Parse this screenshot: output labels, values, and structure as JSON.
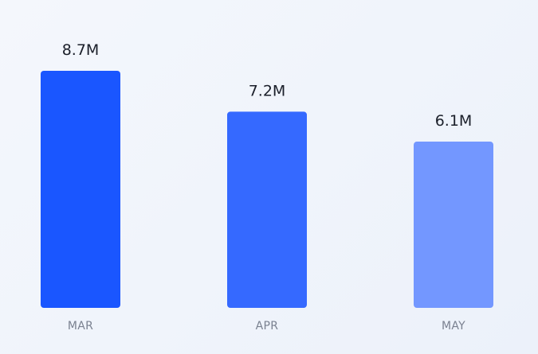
{
  "chart_data": {
    "type": "bar",
    "title": "",
    "xlabel": "",
    "ylabel": "",
    "categories": [
      "MAR",
      "APR",
      "MAY"
    ],
    "values": [
      8.7,
      7.2,
      6.1
    ],
    "value_labels": [
      "8.7M",
      "7.2M",
      "6.1M"
    ],
    "unit": "M",
    "ylim": [
      0,
      8.7
    ],
    "grid": false,
    "legend": "none",
    "colors": [
      "#1a56ff",
      "#3569ff",
      "#7397ff"
    ]
  }
}
